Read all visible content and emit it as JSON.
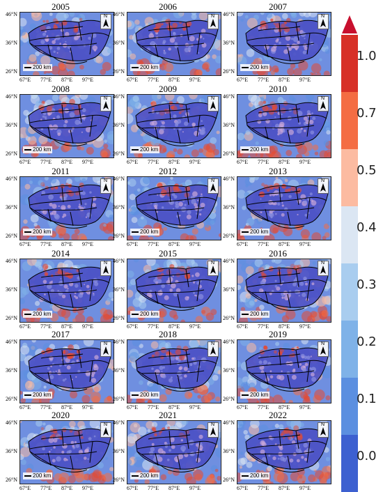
{
  "panels": [
    {
      "year": "2005"
    },
    {
      "year": "2006"
    },
    {
      "year": "2007"
    },
    {
      "year": "2008"
    },
    {
      "year": "2009"
    },
    {
      "year": "2010"
    },
    {
      "year": "2011"
    },
    {
      "year": "2012"
    },
    {
      "year": "2013"
    },
    {
      "year": "2014"
    },
    {
      "year": "2015"
    },
    {
      "year": "2016"
    },
    {
      "year": "2017"
    },
    {
      "year": "2018"
    },
    {
      "year": "2019"
    },
    {
      "year": "2020"
    },
    {
      "year": "2021"
    },
    {
      "year": "2022"
    }
  ],
  "axes": {
    "lat_labels": [
      "46°N",
      "36°N",
      "26°N"
    ],
    "lon_labels": [
      "67°E",
      "77°E",
      "87°E",
      "97°E"
    ]
  },
  "map": {
    "scale_label": "200 km",
    "north_label": "N"
  },
  "colorbar": {
    "labels": [
      "1.0",
      "0.7",
      "0.5",
      "0.4",
      "0.3",
      "0.2",
      "0.1",
      "0.0"
    ],
    "colors": [
      "#d73027",
      "#f46d43",
      "#fcbba1",
      "#dbe6f3",
      "#a9cdef",
      "#7fb2e8",
      "#5b8fe0",
      "#3d60d0"
    ],
    "top_arrow_color": "#c8102e"
  }
}
